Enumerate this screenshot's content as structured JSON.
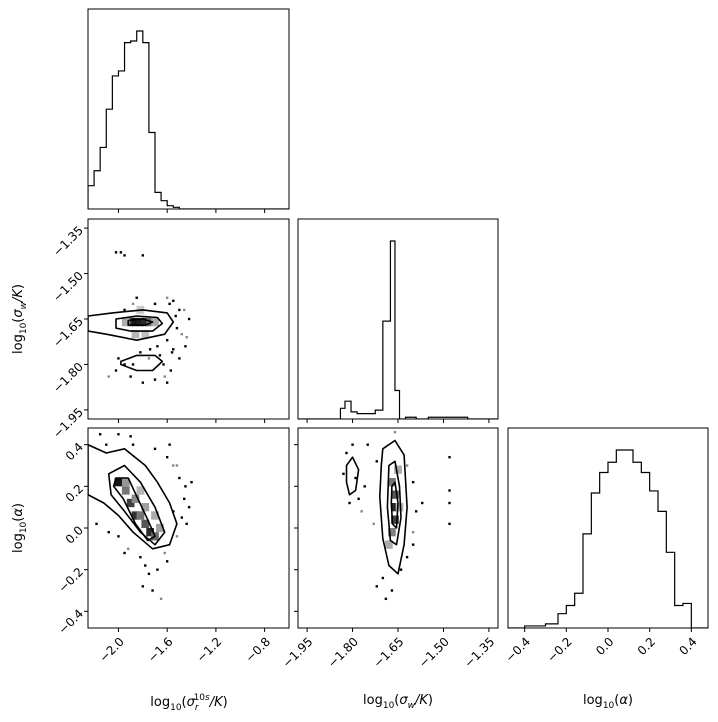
{
  "chart_data": {
    "type": "corner",
    "parameters": [
      {
        "id": "r",
        "axis_label_tex": "log10(sigma_r^10s / K)",
        "range": [
          -2.25,
          -0.6
        ],
        "ticks": [
          -2.0,
          -1.6,
          -1.2,
          -0.8
        ],
        "tick_labels": [
          "−2.0",
          "−1.6",
          "−1.2",
          "−0.8"
        ]
      },
      {
        "id": "w",
        "axis_label_tex": "log10(sigma_w / K)",
        "range": [
          -1.98,
          -1.32
        ],
        "ticks": [
          -1.95,
          -1.8,
          -1.65,
          -1.5,
          -1.35
        ],
        "tick_labels": [
          "−1.95",
          "−1.80",
          "−1.65",
          "−1.50",
          "−1.35"
        ]
      },
      {
        "id": "a",
        "axis_label_tex": "log10(alpha)",
        "range": [
          -0.48,
          0.48
        ],
        "ticks": [
          -0.4,
          -0.2,
          0.0,
          0.2,
          0.4
        ],
        "tick_labels": [
          "−0.4",
          "−0.2",
          "0.0",
          "0.2",
          "0.4"
        ]
      }
    ],
    "histograms": [
      {
        "param": "r",
        "bin_edges": [
          -2.25,
          -2.2,
          -2.15,
          -2.1,
          -2.05,
          -2.0,
          -1.95,
          -1.9,
          -1.85,
          -1.8,
          -1.75,
          -1.7,
          -1.65,
          -1.6,
          -1.55,
          -1.5,
          -1.45,
          -1.4,
          -1.35,
          -1.3,
          -1.25,
          -1.2,
          -1.15,
          -1.1,
          -1.05,
          -1.0,
          -0.95,
          -0.9,
          -0.85,
          -0.8,
          -0.75,
          -0.7,
          -0.65,
          -0.6
        ],
        "counts": [
          14,
          23,
          37,
          60,
          80,
          83,
          100,
          101,
          107,
          100,
          46,
          10,
          5,
          2,
          1,
          0,
          0,
          0,
          0,
          0,
          0,
          0,
          0,
          0,
          0,
          0,
          0,
          0,
          0,
          0,
          0,
          0,
          0
        ]
      },
      {
        "param": "w",
        "bin_edges": [
          -1.98,
          -1.945,
          -1.91,
          -1.875,
          -1.84,
          -1.825,
          -1.805,
          -1.785,
          -1.75,
          -1.725,
          -1.7,
          -1.675,
          -1.66,
          -1.645,
          -1.625,
          -1.59,
          -1.55,
          -1.5,
          -1.45,
          -1.42,
          -1.32
        ],
        "counts": [
          0,
          0,
          0,
          0,
          6,
          10,
          4,
          3,
          3,
          5,
          55,
          100,
          16,
          0,
          1,
          0,
          1,
          1,
          1,
          0
        ]
      },
      {
        "param": "a",
        "bin_edges": [
          -0.48,
          -0.4,
          -0.3,
          -0.24,
          -0.2,
          -0.16,
          -0.12,
          -0.08,
          -0.04,
          0.0,
          0.04,
          0.08,
          0.12,
          0.16,
          0.2,
          0.24,
          0.28,
          0.32,
          0.36,
          0.4,
          0.44,
          0.48
        ],
        "counts": [
          0,
          1,
          2,
          7,
          11,
          17,
          46,
          66,
          76,
          81,
          87,
          87,
          81,
          76,
          67,
          57,
          37,
          11,
          12,
          0,
          0
        ]
      }
    ],
    "pairs": [
      {
        "x": "r",
        "y": "w",
        "density_cells": [
          [
            -1.9,
            -1.66,
            0.8
          ],
          [
            -1.86,
            -1.66,
            1.0
          ],
          [
            -1.82,
            -1.66,
            0.95
          ],
          [
            -1.78,
            -1.66,
            0.9
          ],
          [
            -1.74,
            -1.66,
            0.6
          ],
          [
            -1.94,
            -1.66,
            0.3
          ],
          [
            -1.7,
            -1.66,
            0.3
          ],
          [
            -1.86,
            -1.7,
            0.25
          ],
          [
            -1.78,
            -1.7,
            0.2
          ],
          [
            -1.82,
            -1.62,
            0.15
          ]
        ],
        "contours": [
          [
            [
              -2.25,
              -1.64
            ],
            [
              -2.05,
              -1.63
            ],
            [
              -1.8,
              -1.62
            ],
            [
              -1.6,
              -1.63
            ],
            [
              -1.55,
              -1.66
            ],
            [
              -1.62,
              -1.7
            ],
            [
              -1.85,
              -1.72
            ],
            [
              -2.1,
              -1.7
            ],
            [
              -2.25,
              -1.69
            ]
          ],
          [
            [
              -2.02,
              -1.65
            ],
            [
              -1.85,
              -1.64
            ],
            [
              -1.68,
              -1.645
            ],
            [
              -1.64,
              -1.665
            ],
            [
              -1.72,
              -1.69
            ],
            [
              -1.9,
              -1.69
            ],
            [
              -2.02,
              -1.68
            ]
          ],
          [
            [
              -1.92,
              -1.655
            ],
            [
              -1.8,
              -1.65
            ],
            [
              -1.72,
              -1.66
            ],
            [
              -1.78,
              -1.67
            ],
            [
              -1.92,
              -1.67
            ]
          ],
          [
            [
              -1.98,
              -1.79
            ],
            [
              -1.85,
              -1.77
            ],
            [
              -1.7,
              -1.77
            ],
            [
              -1.64,
              -1.79
            ],
            [
              -1.72,
              -1.82
            ],
            [
              -1.85,
              -1.82
            ],
            [
              -1.98,
              -1.8
            ]
          ]
        ],
        "scatter": [
          [
            -2.02,
            -1.43
          ],
          [
            -1.98,
            -1.43
          ],
          [
            -1.95,
            -1.44
          ],
          [
            -1.8,
            -1.44
          ],
          [
            -1.6,
            -1.58
          ],
          [
            -1.55,
            -1.59
          ],
          [
            -1.5,
            -1.62
          ],
          [
            -1.58,
            -1.6
          ],
          [
            -1.95,
            -1.62
          ],
          [
            -1.88,
            -1.6
          ],
          [
            -1.7,
            -1.6
          ],
          [
            -1.6,
            -1.72
          ],
          [
            -1.55,
            -1.75
          ],
          [
            -1.52,
            -1.68
          ],
          [
            -1.48,
            -1.7
          ],
          [
            -1.5,
            -1.78
          ],
          [
            -1.57,
            -1.82
          ],
          [
            -1.63,
            -1.8
          ],
          [
            -1.7,
            -1.85
          ],
          [
            -1.75,
            -1.78
          ],
          [
            -1.82,
            -1.76
          ],
          [
            -1.9,
            -1.84
          ],
          [
            -1.95,
            -1.8
          ],
          [
            -2.02,
            -1.82
          ],
          [
            -2.08,
            -1.84
          ],
          [
            -1.8,
            -1.86
          ],
          [
            -1.6,
            -1.86
          ],
          [
            -1.45,
            -1.74
          ],
          [
            -1.42,
            -1.65
          ],
          [
            -1.46,
            -1.62
          ],
          [
            -1.66,
            -1.77
          ],
          [
            -1.74,
            -1.75
          ],
          [
            -1.88,
            -1.8
          ],
          [
            -2.0,
            -1.78
          ],
          [
            -1.62,
            -1.84
          ],
          [
            -1.56,
            -1.76
          ],
          [
            -1.85,
            -1.58
          ],
          [
            -1.68,
            -1.74
          ],
          [
            -1.53,
            -1.64
          ],
          [
            -1.44,
            -1.71
          ]
        ]
      },
      {
        "x": "r",
        "y": "a",
        "density_cells": [
          [
            -2.0,
            0.22,
            1.0
          ],
          [
            -1.94,
            0.18,
            0.55
          ],
          [
            -1.9,
            0.12,
            0.8
          ],
          [
            -1.86,
            0.06,
            0.85
          ],
          [
            -1.82,
            0.06,
            0.55
          ],
          [
            -1.78,
            0.02,
            0.7
          ],
          [
            -1.74,
            -0.02,
            0.9
          ],
          [
            -1.7,
            -0.04,
            0.6
          ],
          [
            -1.86,
            0.14,
            0.45
          ],
          [
            -1.94,
            0.22,
            0.4
          ],
          [
            -1.78,
            0.1,
            0.35
          ],
          [
            -1.7,
            0.06,
            0.3
          ],
          [
            -1.66,
            0.0,
            0.35
          ],
          [
            -1.82,
            0.18,
            0.25
          ]
        ],
        "contours": [
          [
            [
              -2.25,
              0.4
            ],
            [
              -2.1,
              0.36
            ],
            [
              -1.95,
              0.38
            ],
            [
              -1.78,
              0.3
            ],
            [
              -1.68,
              0.22
            ],
            [
              -1.58,
              0.12
            ],
            [
              -1.52,
              0.02
            ],
            [
              -1.58,
              -0.08
            ],
            [
              -1.72,
              -0.1
            ],
            [
              -1.88,
              -0.02
            ],
            [
              -2.0,
              0.06
            ],
            [
              -2.12,
              0.12
            ],
            [
              -2.25,
              0.16
            ]
          ],
          [
            [
              -2.08,
              0.26
            ],
            [
              -1.95,
              0.3
            ],
            [
              -1.82,
              0.22
            ],
            [
              -1.7,
              0.1
            ],
            [
              -1.62,
              -0.02
            ],
            [
              -1.7,
              -0.08
            ],
            [
              -1.82,
              -0.02
            ],
            [
              -1.95,
              0.08
            ],
            [
              -2.06,
              0.16
            ]
          ],
          [
            [
              -2.02,
              0.24
            ],
            [
              -1.92,
              0.24
            ],
            [
              -1.84,
              0.14
            ],
            [
              -1.76,
              0.04
            ],
            [
              -1.7,
              -0.04
            ],
            [
              -1.76,
              -0.06
            ],
            [
              -1.86,
              0.02
            ],
            [
              -1.96,
              0.14
            ],
            [
              -2.04,
              0.2
            ]
          ]
        ],
        "scatter": [
          [
            -2.15,
            0.45
          ],
          [
            -2.0,
            0.45
          ],
          [
            -1.88,
            0.4
          ],
          [
            -1.7,
            0.38
          ],
          [
            -1.55,
            0.3
          ],
          [
            -1.5,
            0.24
          ],
          [
            -1.45,
            0.2
          ],
          [
            -1.42,
            0.1
          ],
          [
            -1.48,
            0.05
          ],
          [
            -1.52,
            -0.04
          ],
          [
            -1.6,
            -0.16
          ],
          [
            -1.68,
            -0.2
          ],
          [
            -1.75,
            -0.22
          ],
          [
            -1.82,
            -0.14
          ],
          [
            -1.92,
            -0.1
          ],
          [
            -2.0,
            -0.04
          ],
          [
            -2.08,
            -0.02
          ],
          [
            -2.18,
            0.02
          ],
          [
            -1.58,
            0.4
          ],
          [
            -1.62,
            -0.12
          ],
          [
            -1.44,
            0.02
          ],
          [
            -1.46,
            0.14
          ],
          [
            -1.95,
            -0.12
          ],
          [
            -1.72,
            -0.3
          ],
          [
            -1.65,
            -0.34
          ],
          [
            -1.8,
            -0.28
          ],
          [
            -1.55,
            0.08
          ],
          [
            -1.9,
            0.44
          ],
          [
            -2.1,
            0.4
          ],
          [
            -1.52,
            0.3
          ],
          [
            -1.4,
            0.22
          ],
          [
            -1.6,
            0.34
          ],
          [
            -1.78,
            -0.18
          ]
        ]
      },
      {
        "x": "w",
        "y": "a",
        "density_cells": [
          [
            -1.66,
            0.16,
            0.7
          ],
          [
            -1.66,
            0.1,
            0.9
          ],
          [
            -1.66,
            0.04,
            0.8
          ],
          [
            -1.67,
            0.22,
            0.55
          ],
          [
            -1.67,
            -0.02,
            0.5
          ],
          [
            -1.65,
            0.28,
            0.3
          ],
          [
            -1.68,
            -0.08,
            0.3
          ],
          [
            -1.645,
            0.1,
            0.25
          ]
        ],
        "contours": [
          [
            [
              -1.7,
              0.38
            ],
            [
              -1.66,
              0.42
            ],
            [
              -1.63,
              0.35
            ],
            [
              -1.62,
              0.1
            ],
            [
              -1.63,
              -0.08
            ],
            [
              -1.65,
              -0.22
            ],
            [
              -1.68,
              -0.18
            ],
            [
              -1.7,
              -0.05
            ],
            [
              -1.71,
              0.15
            ],
            [
              -1.705,
              0.3
            ]
          ],
          [
            [
              -1.68,
              0.3
            ],
            [
              -1.66,
              0.32
            ],
            [
              -1.645,
              0.2
            ],
            [
              -1.64,
              0.05
            ],
            [
              -1.655,
              -0.08
            ],
            [
              -1.675,
              -0.06
            ],
            [
              -1.685,
              0.1
            ]
          ],
          [
            [
              -1.67,
              0.2
            ],
            [
              -1.66,
              0.22
            ],
            [
              -1.65,
              0.12
            ],
            [
              -1.655,
              0.0
            ],
            [
              -1.668,
              0.02
            ],
            [
              -1.672,
              0.12
            ]
          ],
          [
            [
              -1.82,
              0.3
            ],
            [
              -1.8,
              0.34
            ],
            [
              -1.78,
              0.28
            ],
            [
              -1.79,
              0.18
            ],
            [
              -1.81,
              0.16
            ],
            [
              -1.82,
              0.22
            ]
          ]
        ],
        "scatter": [
          [
            -1.82,
            0.36
          ],
          [
            -1.8,
            0.4
          ],
          [
            -1.79,
            0.24
          ],
          [
            -1.81,
            0.12
          ],
          [
            -1.77,
            0.08
          ],
          [
            -1.75,
            0.4
          ],
          [
            -1.72,
            0.32
          ],
          [
            -1.6,
            0.22
          ],
          [
            -1.59,
            0.08
          ],
          [
            -1.6,
            -0.02
          ],
          [
            -1.62,
            -0.14
          ],
          [
            -1.67,
            -0.3
          ],
          [
            -1.69,
            -0.34
          ],
          [
            -1.72,
            -0.28
          ],
          [
            -1.73,
            0.02
          ],
          [
            -1.48,
            0.34
          ],
          [
            -1.48,
            0.18
          ],
          [
            -1.48,
            0.12
          ],
          [
            -1.48,
            0.02
          ],
          [
            -1.66,
            0.46
          ],
          [
            -1.7,
            -0.24
          ],
          [
            -1.76,
            0.2
          ],
          [
            -1.78,
            0.14
          ],
          [
            -1.83,
            0.26
          ],
          [
            -1.62,
            0.3
          ],
          [
            -1.57,
            0.12
          ],
          [
            -1.6,
            -0.08
          ],
          [
            -1.64,
            -0.2
          ]
        ]
      }
    ]
  }
}
